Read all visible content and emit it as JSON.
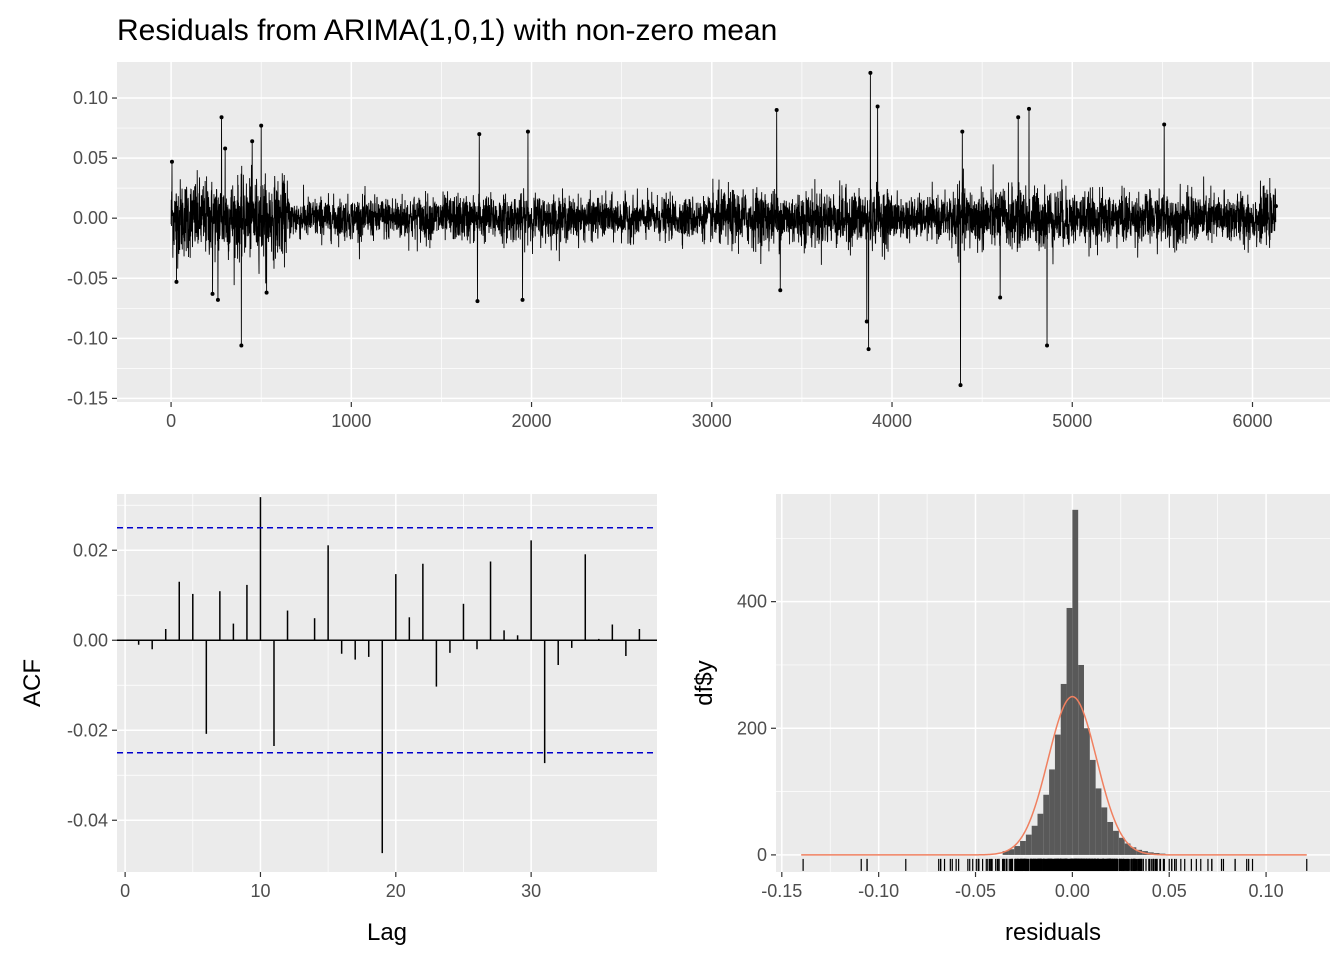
{
  "title": "Residuals from ARIMA(1,0,1) with non-zero mean",
  "colors": {
    "panel_bg": "#EBEBEB",
    "grid_major": "#FFFFFF",
    "series": "#000000",
    "conf_line": "#0000CC",
    "hist_bar": "#595959",
    "density_curve": "#F08060"
  },
  "chart_data": [
    {
      "id": "residual_series",
      "type": "line",
      "title": "Residuals from ARIMA(1,0,1) with non-zero mean",
      "xlabel": "",
      "ylabel": "",
      "xlim": [
        0,
        6130
      ],
      "ylim": [
        -0.15,
        0.13
      ],
      "x_ticks": [
        0,
        1000,
        2000,
        3000,
        4000,
        5000,
        6000
      ],
      "x_tick_labels": [
        "0",
        "1000",
        "2000",
        "3000",
        "4000",
        "5000",
        "6000"
      ],
      "y_ticks": [
        -0.15,
        -0.1,
        -0.05,
        0.0,
        0.05,
        0.1
      ],
      "y_tick_labels": [
        "-0.15",
        "-0.10",
        "-0.05",
        "0.00",
        "0.05",
        "0.10"
      ],
      "grid": true,
      "n_observations": 6130,
      "notable_spikes": [
        {
          "x": 5,
          "y": 0.047
        },
        {
          "x": 30,
          "y": -0.053
        },
        {
          "x": 230,
          "y": -0.063
        },
        {
          "x": 260,
          "y": -0.068
        },
        {
          "x": 280,
          "y": 0.084
        },
        {
          "x": 300,
          "y": 0.058
        },
        {
          "x": 390,
          "y": -0.106
        },
        {
          "x": 450,
          "y": 0.064
        },
        {
          "x": 500,
          "y": 0.077
        },
        {
          "x": 530,
          "y": -0.062
        },
        {
          "x": 1700,
          "y": -0.069
        },
        {
          "x": 1710,
          "y": 0.07
        },
        {
          "x": 1950,
          "y": -0.068
        },
        {
          "x": 1980,
          "y": 0.072
        },
        {
          "x": 3360,
          "y": 0.09
        },
        {
          "x": 3380,
          "y": -0.06
        },
        {
          "x": 3860,
          "y": -0.086
        },
        {
          "x": 3870,
          "y": -0.109
        },
        {
          "x": 3880,
          "y": 0.121
        },
        {
          "x": 3920,
          "y": 0.093
        },
        {
          "x": 4380,
          "y": -0.139
        },
        {
          "x": 4390,
          "y": 0.072
        },
        {
          "x": 4600,
          "y": -0.066
        },
        {
          "x": 4700,
          "y": 0.084
        },
        {
          "x": 4760,
          "y": 0.091
        },
        {
          "x": 4860,
          "y": -0.106
        },
        {
          "x": 5510,
          "y": 0.078
        },
        {
          "x": 6130,
          "y": 0.01
        }
      ],
      "typical_amplitude": 0.02
    },
    {
      "id": "acf",
      "type": "bar",
      "xlabel": "Lag",
      "ylabel": "ACF",
      "xlim": [
        0,
        39
      ],
      "ylim": [
        -0.051,
        0.032
      ],
      "x_ticks": [
        0,
        10,
        20,
        30
      ],
      "x_tick_labels": [
        "0",
        "10",
        "20",
        "30"
      ],
      "y_ticks": [
        -0.04,
        -0.02,
        0.0,
        0.02
      ],
      "y_tick_labels": [
        "-0.04",
        "-0.02",
        "0.00",
        "0.02"
      ],
      "confidence_bounds": [
        0.025,
        -0.025
      ],
      "grid": true,
      "lags": [
        1,
        2,
        3,
        4,
        5,
        6,
        7,
        8,
        9,
        10,
        11,
        12,
        13,
        14,
        15,
        16,
        17,
        18,
        19,
        20,
        21,
        22,
        23,
        24,
        25,
        26,
        27,
        28,
        29,
        30,
        31,
        32,
        33,
        34,
        35,
        36,
        37,
        38
      ],
      "values": [
        -0.001,
        -0.002,
        0.0025,
        0.013,
        0.0103,
        -0.0208,
        0.0109,
        0.0037,
        0.0123,
        0.0318,
        -0.0235,
        0.0066,
        0.0,
        0.0049,
        0.0211,
        -0.003,
        -0.0043,
        -0.0037,
        -0.0473,
        0.0147,
        0.0051,
        0.017,
        -0.0103,
        -0.0028,
        0.0081,
        -0.002,
        0.0175,
        0.0022,
        0.0011,
        0.0222,
        -0.0273,
        -0.0055,
        -0.0017,
        0.0191,
        0.0003,
        0.0035,
        -0.0035,
        0.0025
      ]
    },
    {
      "id": "histogram",
      "type": "bar",
      "xlabel": "residuals",
      "ylabel": "df$y",
      "xlim": [
        -0.14,
        0.121
      ],
      "ylim": [
        0,
        545
      ],
      "x_ticks": [
        -0.15,
        -0.1,
        -0.05,
        0.0,
        0.05,
        0.1
      ],
      "x_tick_labels": [
        "-0.15",
        "-0.10",
        "-0.05",
        "0.00",
        "0.05",
        "0.10"
      ],
      "y_ticks": [
        0,
        200,
        400
      ],
      "y_tick_labels": [
        "0",
        "200",
        "400"
      ],
      "grid": true,
      "bin_centers": [
        -0.0345,
        -0.0315,
        -0.0285,
        -0.0255,
        -0.0225,
        -0.0195,
        -0.0165,
        -0.0135,
        -0.0105,
        -0.0075,
        -0.0045,
        -0.0015,
        0.0015,
        0.0045,
        0.0075,
        0.0105,
        0.0135,
        0.0165,
        0.0195,
        0.0225,
        0.0255,
        0.0285,
        0.0315,
        0.0345,
        0.0375,
        0.0405,
        0.0435,
        0.0465
      ],
      "bin_width": 0.003,
      "counts": [
        6,
        9,
        14,
        22,
        32,
        46,
        65,
        95,
        135,
        190,
        270,
        390,
        545,
        300,
        200,
        150,
        105,
        75,
        52,
        38,
        27,
        18,
        12,
        8,
        6,
        4,
        3,
        2
      ],
      "density_curve": {
        "label": "normal",
        "mean": 0.0,
        "peak_count": 250,
        "sd": 0.0125
      },
      "rug_note": "rug marks along x-axis for each residual"
    }
  ]
}
